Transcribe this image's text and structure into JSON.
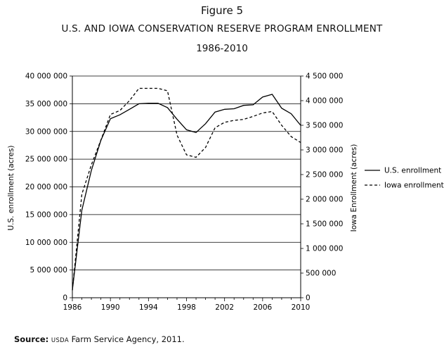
{
  "header": {
    "figure": "Figure 5",
    "title": "U.S. AND IOWA CONSERVATION RESERVE PROGRAM ENROLLMENT",
    "subtitle": "1986-2010"
  },
  "source": {
    "label": "Source:",
    "agency_abbrev": "USDA",
    "text": "Farm Service Agency, 2011."
  },
  "chart_data": {
    "type": "line",
    "title": "U.S. AND IOWA CONSERVATION RESERVE PROGRAM ENROLLMENT",
    "subtitle": "1986-2010",
    "xlabel": "",
    "ylabel_left": "U.S. enrollment (acres)",
    "ylabel_right": "Iowa Enrollment (acres)",
    "xlim": [
      1986,
      2010
    ],
    "ylim_left": [
      0,
      40000000
    ],
    "ylim_right": [
      0,
      4500000
    ],
    "x_ticks": [
      1986,
      1990,
      1994,
      1998,
      2002,
      2006,
      2010
    ],
    "x_tick_labels": [
      "1986",
      "1990",
      "1994",
      "1998",
      "2002",
      "2006",
      "2010"
    ],
    "y_left_ticks": [
      0,
      5000000,
      10000000,
      15000000,
      20000000,
      25000000,
      30000000,
      35000000,
      40000000
    ],
    "y_left_tick_labels": [
      "0",
      "5 000 000",
      "10 000 000",
      "15 000 000",
      "20 000 000",
      "25 000 000",
      "30 000 000",
      "35 000 000",
      "40 000 000"
    ],
    "y_right_ticks": [
      0,
      500000,
      1000000,
      1500000,
      2000000,
      2500000,
      3000000,
      3500000,
      4000000,
      4500000
    ],
    "y_right_tick_labels": [
      "0",
      "500 000",
      "1 000 000",
      "1 500 000",
      "2 000 000",
      "2 500 000",
      "3 000 000",
      "3 500 000",
      "4 000 000",
      "4 500 000"
    ],
    "grid": "horizontal",
    "legend_position": "right",
    "x": [
      1986,
      1987,
      1988,
      1989,
      1990,
      1991,
      1992,
      1993,
      1994,
      1995,
      1996,
      1997,
      1998,
      1999,
      2000,
      2001,
      2002,
      2003,
      2004,
      2005,
      2006,
      2007,
      2008,
      2009,
      2010
    ],
    "series": [
      {
        "name": "U.S. enrollment",
        "axis": "left",
        "style": "solid",
        "color": "#000000",
        "values": [
          1400000,
          15800000,
          23000000,
          28400000,
          32300000,
          33000000,
          34000000,
          35000000,
          35100000,
          35100000,
          34300000,
          32200000,
          30300000,
          29800000,
          31400000,
          33500000,
          34000000,
          34100000,
          34700000,
          34800000,
          36200000,
          36700000,
          34200000,
          33200000,
          31100000
        ]
      },
      {
        "name": "Iowa enrollment",
        "axis": "right",
        "style": "dashed",
        "color": "#000000",
        "values": [
          150000,
          2100000,
          2700000,
          3200000,
          3720000,
          3800000,
          4000000,
          4250000,
          4250000,
          4250000,
          4200000,
          3300000,
          2900000,
          2850000,
          3050000,
          3450000,
          3560000,
          3600000,
          3620000,
          3680000,
          3750000,
          3780000,
          3500000,
          3270000,
          3150000
        ]
      }
    ]
  }
}
